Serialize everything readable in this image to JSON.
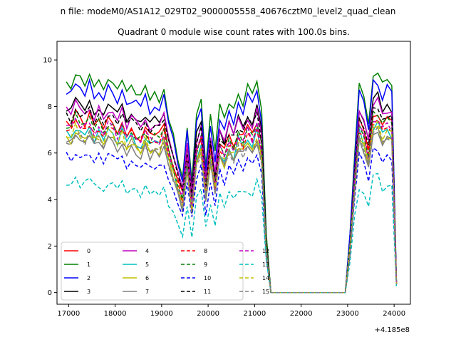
{
  "chart_data": {
    "type": "line",
    "suptitle": "n file: modeM0/AS1A12_029T02_9000005558_40676cztM0_level2_quad_clean",
    "title": "Quadrant 0 module wise count rates with 100.0s bins.",
    "xlabel": "",
    "ylabel": "",
    "x_offset_label": "+4.185e8",
    "xlim": [
      16750,
      24350
    ],
    "ylim": [
      -0.5,
      10.8
    ],
    "xticks": [
      17000,
      18000,
      19000,
      20000,
      21000,
      22000,
      23000,
      24000
    ],
    "yticks": [
      0,
      2,
      4,
      6,
      8,
      10
    ],
    "grid": false,
    "legend": {
      "placement": "lower-left",
      "ncol": 4
    },
    "x": [
      16950,
      17050,
      17150,
      17250,
      17350,
      17450,
      17550,
      17650,
      17750,
      17850,
      17950,
      18050,
      18150,
      18250,
      18350,
      18450,
      18550,
      18650,
      18750,
      18850,
      18950,
      19050,
      19150,
      19250,
      19350,
      19450,
      19550,
      19650,
      19750,
      19850,
      19950,
      20050,
      20150,
      20250,
      20350,
      20450,
      20550,
      20650,
      20750,
      20850,
      20950,
      21050,
      21150,
      21250,
      21350,
      21450,
      21550,
      21650,
      21750,
      21850,
      21950,
      22050,
      22150,
      22250,
      22350,
      22450,
      22550,
      22650,
      22750,
      22850,
      22950,
      23050,
      23150,
      23250,
      23350,
      23450,
      23550,
      23650,
      23750,
      23850,
      23950,
      24050
    ],
    "gap": {
      "start": 21350,
      "end": 22950,
      "value": 0
    },
    "shape": [
      0.93,
      0.91,
      0.97,
      0.94,
      0.92,
      0.96,
      0.9,
      0.93,
      0.89,
      0.94,
      0.91,
      0.88,
      0.93,
      0.86,
      0.9,
      0.87,
      0.85,
      0.9,
      0.84,
      0.87,
      0.85,
      0.9,
      0.78,
      0.7,
      0.6,
      0.52,
      0.74,
      0.5,
      0.78,
      0.85,
      0.56,
      0.78,
      0.6,
      0.82,
      0.76,
      0.85,
      0.8,
      0.88,
      0.84,
      0.9,
      0.86,
      0.93,
      0.8,
      0.25,
      0.0,
      0.0,
      0.0,
      0.0,
      0.0,
      0.0,
      0.0,
      0.0,
      0.0,
      0.0,
      0.0,
      0.0,
      0.0,
      0.0,
      0.0,
      0.0,
      0.0,
      0.25,
      0.62,
      0.93,
      0.88,
      0.76,
      0.97,
      0.98,
      0.91,
      0.94,
      0.92,
      0.05
    ],
    "series": [
      {
        "name": "0",
        "color": "#ff0000",
        "dash": "solid",
        "level": 7.9
      },
      {
        "name": "1",
        "color": "#008000",
        "dash": "solid",
        "level": 9.8
      },
      {
        "name": "2",
        "color": "#0000ff",
        "dash": "solid",
        "level": 9.3
      },
      {
        "name": "3",
        "color": "#000000",
        "dash": "solid",
        "level": 8.6
      },
      {
        "name": "4",
        "color": "#bf00bf",
        "dash": "solid",
        "level": 8.4
      },
      {
        "name": "5",
        "color": "#00bfbf",
        "dash": "solid",
        "level": 7.4
      },
      {
        "name": "6",
        "color": "#bfbf00",
        "dash": "solid",
        "level": 7.2
      },
      {
        "name": "7",
        "color": "#808080",
        "dash": "solid",
        "level": 7.0
      },
      {
        "name": "8",
        "color": "#ff0000",
        "dash": "dashed",
        "level": 7.6
      },
      {
        "name": "9",
        "color": "#008000",
        "dash": "dashed",
        "level": 7.8
      },
      {
        "name": "10",
        "color": "#0000ff",
        "dash": "dashed",
        "level": 6.3
      },
      {
        "name": "11",
        "color": "#000000",
        "dash": "dashed",
        "level": 8.2
      },
      {
        "name": "12",
        "color": "#bf00bf",
        "dash": "dashed",
        "level": 7.7
      },
      {
        "name": "13",
        "color": "#00bfbf",
        "dash": "dashed",
        "level": 5.0
      },
      {
        "name": "14",
        "color": "#bfbf00",
        "dash": "dashed",
        "level": 7.3
      },
      {
        "name": "15",
        "color": "#808080",
        "dash": "dashed",
        "level": 7.1
      }
    ]
  }
}
